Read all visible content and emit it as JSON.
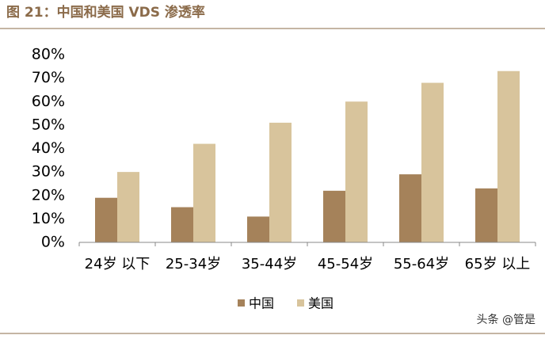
{
  "chart_data": {
    "type": "bar",
    "title": "图 21：中国和美国 VDS 渗透率",
    "categories": [
      "24岁 以下",
      "25-34岁",
      "35-44岁",
      "45-54岁",
      "55-64岁",
      "65岁 以上"
    ],
    "series": [
      {
        "name": "中国",
        "color": "#a5825a",
        "values": [
          19,
          15,
          11,
          22,
          29,
          23
        ]
      },
      {
        "name": "美国",
        "color": "#d8c49c",
        "values": [
          30,
          42,
          51,
          60,
          68,
          73
        ]
      }
    ],
    "ylim": [
      0,
      80
    ],
    "yticks": [
      {
        "value": 0,
        "label": "0%"
      },
      {
        "value": 10,
        "label": "10%"
      },
      {
        "value": 20,
        "label": "20%"
      },
      {
        "value": 30,
        "label": "30%"
      },
      {
        "value": 40,
        "label": "40%"
      },
      {
        "value": 50,
        "label": "50%"
      },
      {
        "value": 60,
        "label": "60%"
      },
      {
        "value": 70,
        "label": "70%"
      },
      {
        "value": 80,
        "label": "80%"
      }
    ],
    "legend": "bottom",
    "watermark": "头条 @管是"
  }
}
